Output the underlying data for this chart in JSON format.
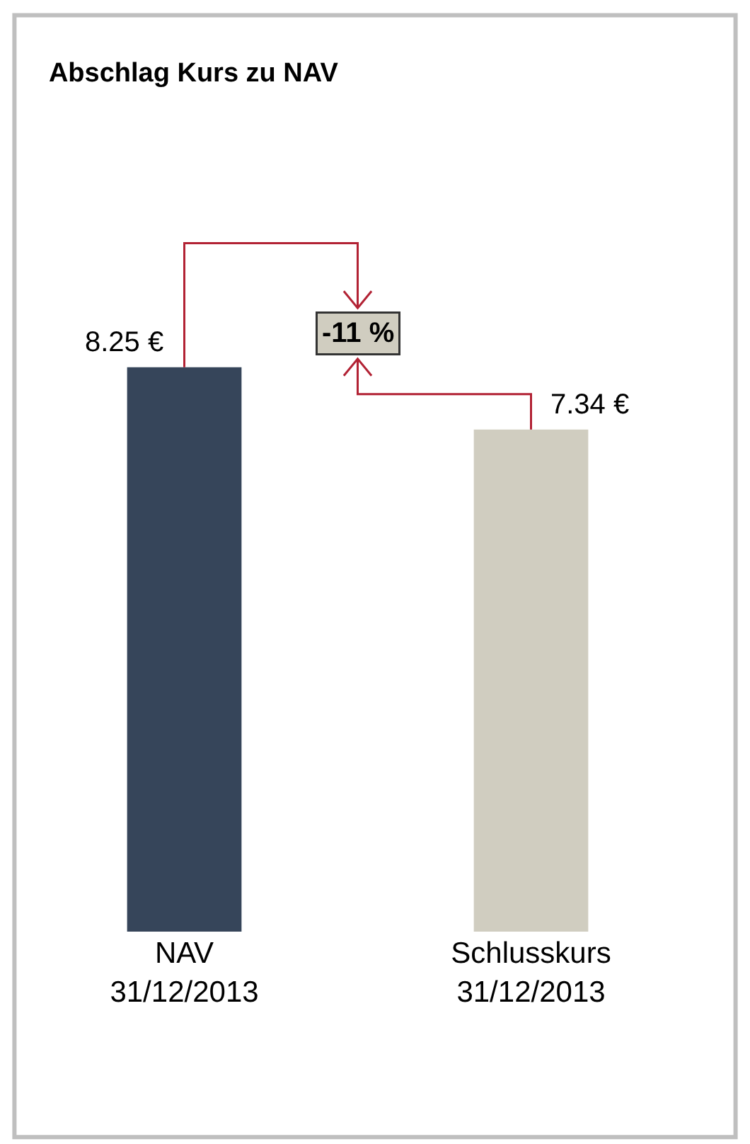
{
  "chart_data": {
    "type": "bar",
    "title": "Abschlag Kurs zu NAV",
    "categories": [
      "NAV\n31/12/2013",
      "Schlusskurs\n31/12/2013"
    ],
    "values": [
      8.25,
      7.34
    ],
    "colors": [
      "#36455a",
      "#d0cdc0"
    ],
    "value_labels": [
      "8.25 €",
      "7.34 €"
    ],
    "annotations": [
      "-11 %"
    ]
  }
}
